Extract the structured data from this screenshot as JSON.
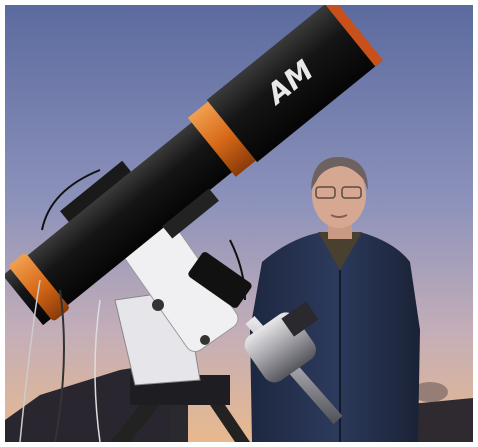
{
  "image": {
    "logo": "AM"
  }
}
